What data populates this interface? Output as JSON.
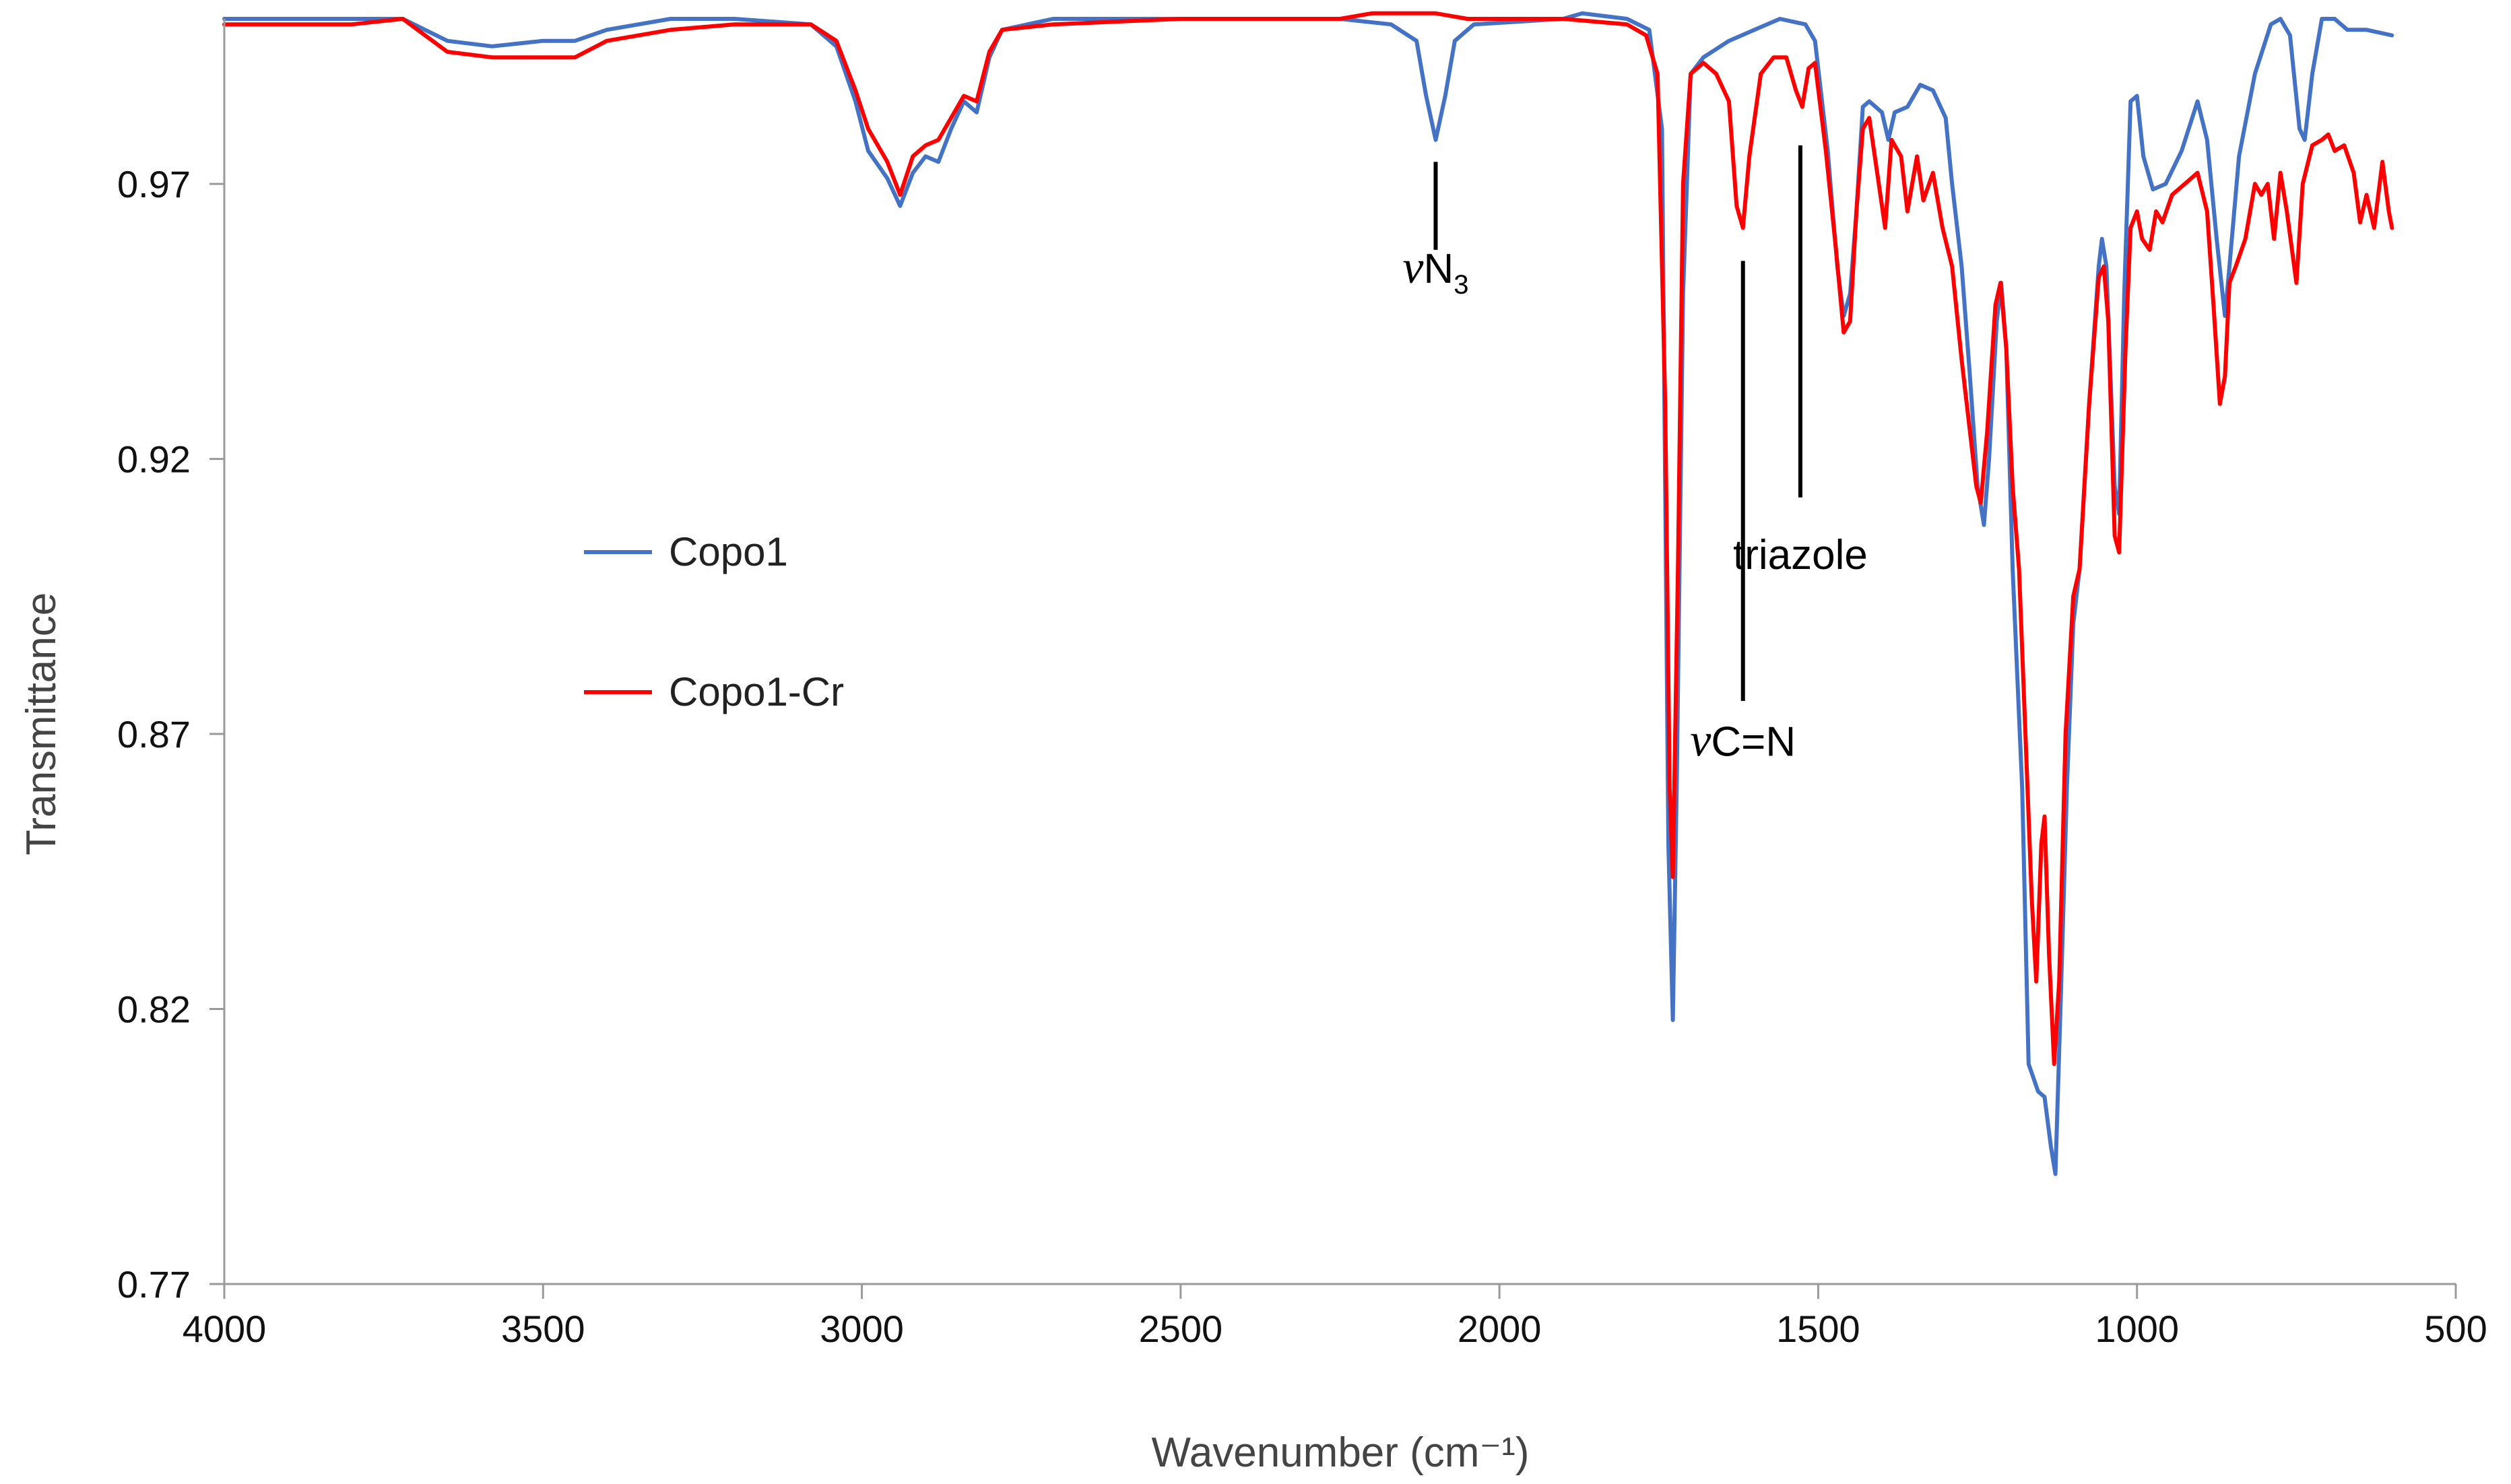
{
  "chart_data": {
    "type": "line",
    "title": "",
    "xlabel": "Wavenumber (cm⁻¹)",
    "ylabel": "Transmittance",
    "xlim": [
      4000,
      500
    ],
    "ylim": [
      0.77,
      1.0
    ],
    "x_ticks": [
      4000,
      3500,
      3000,
      2500,
      2000,
      1500,
      1000,
      500
    ],
    "x_tick_labels": [
      "4000",
      "3500",
      "3000",
      "2500",
      "2000",
      "1500",
      "1000",
      "500"
    ],
    "y_ticks": [
      0.77,
      0.82,
      0.87,
      0.92,
      0.97
    ],
    "y_tick_labels": [
      "0.77",
      "0.82",
      "0.87",
      "0.92",
      "0.97"
    ],
    "grid": false,
    "legend_position": "center-left",
    "series": [
      {
        "name": "Copo1",
        "color": "#4472C4",
        "points": [
          [
            4000,
            1.0
          ],
          [
            3900,
            1.0
          ],
          [
            3800,
            1.0
          ],
          [
            3720,
            1.0
          ],
          [
            3650,
            0.996
          ],
          [
            3580,
            0.995
          ],
          [
            3500,
            0.996
          ],
          [
            3450,
            0.996
          ],
          [
            3400,
            0.998
          ],
          [
            3300,
            1.0
          ],
          [
            3200,
            1.0
          ],
          [
            3080,
            0.999
          ],
          [
            3040,
            0.995
          ],
          [
            3010,
            0.985
          ],
          [
            2990,
            0.976
          ],
          [
            2960,
            0.971
          ],
          [
            2940,
            0.966
          ],
          [
            2920,
            0.972
          ],
          [
            2900,
            0.975
          ],
          [
            2880,
            0.974
          ],
          [
            2860,
            0.98
          ],
          [
            2840,
            0.985
          ],
          [
            2820,
            0.983
          ],
          [
            2800,
            0.993
          ],
          [
            2780,
            0.998
          ],
          [
            2700,
            1.0
          ],
          [
            2500,
            1.0
          ],
          [
            2250,
            1.0
          ],
          [
            2170,
            0.999
          ],
          [
            2130,
            0.996
          ],
          [
            2115,
            0.986
          ],
          [
            2100,
            0.978
          ],
          [
            2085,
            0.986
          ],
          [
            2070,
            0.996
          ],
          [
            2040,
            0.999
          ],
          [
            1900,
            1.0
          ],
          [
            1870,
            1.001
          ],
          [
            1800,
            1.0
          ],
          [
            1765,
            0.998
          ],
          [
            1745,
            0.98
          ],
          [
            1735,
            0.85
          ],
          [
            1728,
            0.818
          ],
          [
            1722,
            0.86
          ],
          [
            1712,
            0.95
          ],
          [
            1700,
            0.99
          ],
          [
            1680,
            0.993
          ],
          [
            1640,
            0.996
          ],
          [
            1600,
            0.998
          ],
          [
            1560,
            1.0
          ],
          [
            1520,
            0.999
          ],
          [
            1505,
            0.996
          ],
          [
            1485,
            0.976
          ],
          [
            1470,
            0.955
          ],
          [
            1460,
            0.946
          ],
          [
            1450,
            0.95
          ],
          [
            1440,
            0.965
          ],
          [
            1430,
            0.984
          ],
          [
            1420,
            0.985
          ],
          [
            1400,
            0.983
          ],
          [
            1390,
            0.978
          ],
          [
            1380,
            0.983
          ],
          [
            1360,
            0.984
          ],
          [
            1340,
            0.988
          ],
          [
            1320,
            0.987
          ],
          [
            1300,
            0.982
          ],
          [
            1290,
            0.97
          ],
          [
            1275,
            0.955
          ],
          [
            1262,
            0.935
          ],
          [
            1250,
            0.915
          ],
          [
            1240,
            0.908
          ],
          [
            1232,
            0.92
          ],
          [
            1220,
            0.945
          ],
          [
            1213,
            0.952
          ],
          [
            1205,
            0.94
          ],
          [
            1195,
            0.9
          ],
          [
            1180,
            0.86
          ],
          [
            1170,
            0.81
          ],
          [
            1155,
            0.805
          ],
          [
            1145,
            0.804
          ],
          [
            1135,
            0.795
          ],
          [
            1128,
            0.79
          ],
          [
            1120,
            0.82
          ],
          [
            1110,
            0.86
          ],
          [
            1100,
            0.89
          ],
          [
            1090,
            0.9
          ],
          [
            1075,
            0.93
          ],
          [
            1060,
            0.955
          ],
          [
            1055,
            0.96
          ],
          [
            1048,
            0.955
          ],
          [
            1035,
            0.915
          ],
          [
            1028,
            0.91
          ],
          [
            1020,
            0.95
          ],
          [
            1010,
            0.985
          ],
          [
            1000,
            0.986
          ],
          [
            990,
            0.975
          ],
          [
            975,
            0.969
          ],
          [
            955,
            0.97
          ],
          [
            930,
            0.976
          ],
          [
            905,
            0.985
          ],
          [
            890,
            0.978
          ],
          [
            875,
            0.96
          ],
          [
            862,
            0.946
          ],
          [
            855,
            0.955
          ],
          [
            840,
            0.975
          ],
          [
            815,
            0.99
          ],
          [
            790,
            0.999
          ],
          [
            775,
            1.0
          ],
          [
            760,
            0.997
          ],
          [
            745,
            0.98
          ],
          [
            737,
            0.978
          ],
          [
            725,
            0.99
          ],
          [
            710,
            1.0
          ],
          [
            690,
            1.0
          ],
          [
            670,
            0.998
          ],
          [
            640,
            0.998
          ],
          [
            600,
            0.997
          ]
        ]
      },
      {
        "name": "Copo1-Cr",
        "color": "#FF0000",
        "points": [
          [
            4000,
            0.999
          ],
          [
            3900,
            0.999
          ],
          [
            3800,
            0.999
          ],
          [
            3720,
            1.0
          ],
          [
            3650,
            0.994
          ],
          [
            3580,
            0.993
          ],
          [
            3500,
            0.993
          ],
          [
            3450,
            0.993
          ],
          [
            3400,
            0.996
          ],
          [
            3300,
            0.998
          ],
          [
            3200,
            0.999
          ],
          [
            3080,
            0.999
          ],
          [
            3040,
            0.996
          ],
          [
            3010,
            0.987
          ],
          [
            2990,
            0.98
          ],
          [
            2960,
            0.974
          ],
          [
            2940,
            0.968
          ],
          [
            2920,
            0.975
          ],
          [
            2900,
            0.977
          ],
          [
            2880,
            0.978
          ],
          [
            2860,
            0.982
          ],
          [
            2840,
            0.986
          ],
          [
            2820,
            0.985
          ],
          [
            2800,
            0.994
          ],
          [
            2780,
            0.998
          ],
          [
            2700,
            0.999
          ],
          [
            2500,
            1.0
          ],
          [
            2250,
            1.0
          ],
          [
            2200,
            1.001
          ],
          [
            2150,
            1.001
          ],
          [
            2100,
            1.001
          ],
          [
            2050,
            1.0
          ],
          [
            1900,
            1.0
          ],
          [
            1800,
            0.999
          ],
          [
            1770,
            0.997
          ],
          [
            1752,
            0.99
          ],
          [
            1740,
            0.93
          ],
          [
            1733,
            0.86
          ],
          [
            1728,
            0.844
          ],
          [
            1720,
            0.9
          ],
          [
            1712,
            0.97
          ],
          [
            1700,
            0.99
          ],
          [
            1680,
            0.992
          ],
          [
            1660,
            0.99
          ],
          [
            1640,
            0.985
          ],
          [
            1628,
            0.966
          ],
          [
            1618,
            0.962
          ],
          [
            1608,
            0.975
          ],
          [
            1590,
            0.99
          ],
          [
            1570,
            0.993
          ],
          [
            1550,
            0.993
          ],
          [
            1535,
            0.987
          ],
          [
            1525,
            0.984
          ],
          [
            1515,
            0.991
          ],
          [
            1505,
            0.992
          ],
          [
            1488,
            0.976
          ],
          [
            1472,
            0.958
          ],
          [
            1460,
            0.943
          ],
          [
            1450,
            0.945
          ],
          [
            1440,
            0.965
          ],
          [
            1430,
            0.98
          ],
          [
            1420,
            0.982
          ],
          [
            1405,
            0.97
          ],
          [
            1395,
            0.962
          ],
          [
            1385,
            0.978
          ],
          [
            1370,
            0.975
          ],
          [
            1360,
            0.965
          ],
          [
            1345,
            0.975
          ],
          [
            1335,
            0.967
          ],
          [
            1320,
            0.972
          ],
          [
            1305,
            0.962
          ],
          [
            1290,
            0.955
          ],
          [
            1275,
            0.938
          ],
          [
            1262,
            0.925
          ],
          [
            1252,
            0.915
          ],
          [
            1245,
            0.912
          ],
          [
            1235,
            0.925
          ],
          [
            1222,
            0.948
          ],
          [
            1214,
            0.952
          ],
          [
            1205,
            0.94
          ],
          [
            1195,
            0.915
          ],
          [
            1185,
            0.9
          ],
          [
            1175,
            0.87
          ],
          [
            1165,
            0.84
          ],
          [
            1158,
            0.825
          ],
          [
            1150,
            0.85
          ],
          [
            1145,
            0.855
          ],
          [
            1138,
            0.83
          ],
          [
            1130,
            0.81
          ],
          [
            1122,
            0.825
          ],
          [
            1112,
            0.87
          ],
          [
            1100,
            0.895
          ],
          [
            1090,
            0.9
          ],
          [
            1075,
            0.93
          ],
          [
            1060,
            0.953
          ],
          [
            1052,
            0.955
          ],
          [
            1045,
            0.945
          ],
          [
            1035,
            0.906
          ],
          [
            1028,
            0.903
          ],
          [
            1018,
            0.94
          ],
          [
            1010,
            0.962
          ],
          [
            1000,
            0.965
          ],
          [
            992,
            0.96
          ],
          [
            980,
            0.958
          ],
          [
            970,
            0.965
          ],
          [
            960,
            0.963
          ],
          [
            945,
            0.968
          ],
          [
            925,
            0.97
          ],
          [
            905,
            0.972
          ],
          [
            890,
            0.965
          ],
          [
            880,
            0.948
          ],
          [
            870,
            0.93
          ],
          [
            862,
            0.935
          ],
          [
            855,
            0.952
          ],
          [
            845,
            0.955
          ],
          [
            830,
            0.96
          ],
          [
            815,
            0.97
          ],
          [
            805,
            0.968
          ],
          [
            795,
            0.97
          ],
          [
            785,
            0.96
          ],
          [
            775,
            0.972
          ],
          [
            765,
            0.965
          ],
          [
            750,
            0.952
          ],
          [
            740,
            0.97
          ],
          [
            725,
            0.977
          ],
          [
            710,
            0.978
          ],
          [
            700,
            0.979
          ],
          [
            690,
            0.976
          ],
          [
            675,
            0.977
          ],
          [
            660,
            0.972
          ],
          [
            650,
            0.963
          ],
          [
            640,
            0.968
          ],
          [
            628,
            0.962
          ],
          [
            615,
            0.974
          ],
          [
            605,
            0.965
          ],
          [
            600,
            0.962
          ]
        ]
      }
    ],
    "annotations": [
      {
        "id": "nu-n3",
        "symbol": "ν",
        "text": "N",
        "subscript": "3",
        "x": 2100,
        "marker_from_y": 0.974,
        "marker_to_y": 0.958,
        "label_y": 0.952
      },
      {
        "id": "nu-cn",
        "symbol": "ν",
        "text": "C=N",
        "subscript": "",
        "x": 1618,
        "marker_from_y": 0.956,
        "marker_to_y": 0.876,
        "label_y": 0.866
      },
      {
        "id": "triazole",
        "symbol": "",
        "text": "triazole",
        "subscript": "",
        "x": 1528,
        "marker_from_y": 0.977,
        "marker_to_y": 0.913,
        "label_y": 0.9
      }
    ]
  }
}
